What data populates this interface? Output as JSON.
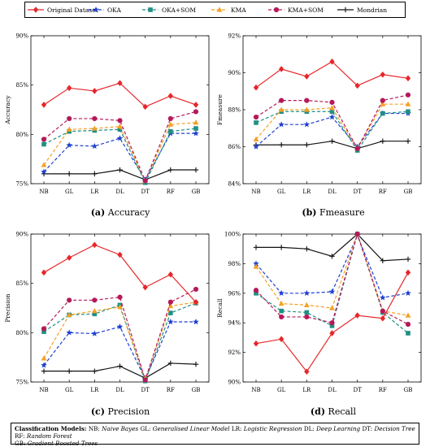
{
  "legend": [
    {
      "name": "Original Dataset",
      "color": "#e8262a",
      "dash": "",
      "marker": "diamond"
    },
    {
      "name": "OKA",
      "color": "#1e3fd1",
      "dash": "4,2.5",
      "marker": "star"
    },
    {
      "name": "OKA+SOM",
      "color": "#1f8f84",
      "dash": "4,2.5",
      "marker": "square"
    },
    {
      "name": "KMA",
      "color": "#f5a023",
      "dash": "4,2.5",
      "marker": "triangle"
    },
    {
      "name": "KMA+SOM",
      "color": "#b5195a",
      "dash": "4,2.5",
      "marker": "circle"
    },
    {
      "name": "Mondrian",
      "color": "#111111",
      "dash": "",
      "marker": "plus"
    }
  ],
  "chart_data": [
    {
      "type": "line",
      "caption_letter": "(a)",
      "caption_text": "Accuracy",
      "ylabel": "Accuracy",
      "categories": [
        "NB",
        "GL",
        "LR",
        "DL",
        "DT",
        "RF",
        "GB"
      ],
      "ylim": [
        75,
        90
      ],
      "yticks": [
        75,
        80,
        85,
        90
      ],
      "ytick_labels": [
        "75%",
        "80%",
        "85%",
        "90%"
      ],
      "series": [
        {
          "name": "Original Dataset",
          "values": [
            83.0,
            84.7,
            84.4,
            85.2,
            82.8,
            83.9,
            83.0
          ]
        },
        {
          "name": "OKA",
          "values": [
            76.2,
            78.9,
            78.8,
            79.6,
            75.4,
            80.1,
            80.1
          ]
        },
        {
          "name": "OKA+SOM",
          "values": [
            79.0,
            80.3,
            80.4,
            80.5,
            75.1,
            80.3,
            80.6
          ]
        },
        {
          "name": "KMA",
          "values": [
            76.9,
            80.5,
            80.6,
            80.8,
            75.3,
            81.0,
            81.2
          ]
        },
        {
          "name": "KMA+SOM",
          "values": [
            79.5,
            81.6,
            81.6,
            81.4,
            75.3,
            81.6,
            82.3
          ]
        },
        {
          "name": "Mondrian",
          "values": [
            76.0,
            76.0,
            76.0,
            76.4,
            75.4,
            76.4,
            76.4
          ]
        }
      ]
    },
    {
      "type": "line",
      "caption_letter": "(b)",
      "caption_text": "Fmeasure",
      "ylabel": "Fmeasure",
      "categories": [
        "NB",
        "GL",
        "LR",
        "DL",
        "DT",
        "RF",
        "GB"
      ],
      "ylim": [
        84,
        92
      ],
      "yticks": [
        84,
        86,
        88,
        90,
        92
      ],
      "ytick_labels": [
        "84%",
        "86%",
        "88%",
        "90%",
        "92%"
      ],
      "series": [
        {
          "name": "Original Dataset",
          "values": [
            89.2,
            90.2,
            89.8,
            90.6,
            89.3,
            89.9,
            89.7
          ]
        },
        {
          "name": "OKA",
          "values": [
            86.0,
            87.2,
            87.2,
            87.6,
            86.0,
            87.8,
            87.8
          ]
        },
        {
          "name": "OKA+SOM",
          "values": [
            87.3,
            87.9,
            87.9,
            87.9,
            85.8,
            87.8,
            87.9
          ]
        },
        {
          "name": "KMA",
          "values": [
            86.4,
            88.0,
            88.0,
            88.1,
            85.9,
            88.3,
            88.3
          ]
        },
        {
          "name": "KMA+SOM",
          "values": [
            87.6,
            88.5,
            88.5,
            88.4,
            85.9,
            88.5,
            88.8
          ]
        },
        {
          "name": "Mondrian",
          "values": [
            86.1,
            86.1,
            86.1,
            86.3,
            85.9,
            86.3,
            86.3
          ]
        }
      ]
    },
    {
      "type": "line",
      "caption_letter": "(c)",
      "caption_text": "Precision",
      "ylabel": "Precision",
      "categories": [
        "NB",
        "GL",
        "LR",
        "DL",
        "DT",
        "RF",
        "GB"
      ],
      "ylim": [
        75,
        90
      ],
      "yticks": [
        75,
        80,
        85,
        90
      ],
      "ytick_labels": [
        "75%",
        "80%",
        "85%",
        "90%"
      ],
      "series": [
        {
          "name": "Original Dataset",
          "values": [
            86.1,
            87.6,
            88.9,
            87.9,
            84.6,
            85.9,
            83.1
          ]
        },
        {
          "name": "OKA",
          "values": [
            76.7,
            80.0,
            79.9,
            80.6,
            75.3,
            81.1,
            81.1
          ]
        },
        {
          "name": "OKA+SOM",
          "values": [
            80.1,
            81.8,
            81.9,
            82.8,
            75.1,
            82.0,
            83.0
          ]
        },
        {
          "name": "KMA",
          "values": [
            77.4,
            81.8,
            82.2,
            82.6,
            75.3,
            82.7,
            83.1
          ]
        },
        {
          "name": "KMA+SOM",
          "values": [
            80.4,
            83.3,
            83.3,
            83.6,
            75.2,
            83.1,
            84.4
          ]
        },
        {
          "name": "Mondrian",
          "values": [
            76.1,
            76.1,
            76.1,
            76.6,
            75.4,
            76.9,
            76.8
          ]
        }
      ]
    },
    {
      "type": "line",
      "caption_letter": "(d)",
      "caption_text": "Recall",
      "ylabel": "Recall",
      "categories": [
        "NB",
        "GL",
        "LR",
        "DL",
        "DT",
        "RF",
        "GB"
      ],
      "ylim": [
        90,
        100
      ],
      "yticks": [
        90,
        92,
        94,
        96,
        98,
        100
      ],
      "ytick_labels": [
        "90%",
        "92%",
        "94%",
        "96%",
        "98%",
        "100%"
      ],
      "series": [
        {
          "name": "Original Dataset",
          "values": [
            92.6,
            92.9,
            90.7,
            93.3,
            94.5,
            94.3,
            97.4
          ]
        },
        {
          "name": "OKA",
          "values": [
            98.0,
            96.0,
            96.0,
            96.1,
            99.9,
            95.7,
            96.0
          ]
        },
        {
          "name": "OKA+SOM",
          "values": [
            96.0,
            94.8,
            94.7,
            93.8,
            100.0,
            94.7,
            93.3
          ]
        },
        {
          "name": "KMA",
          "values": [
            97.8,
            95.3,
            95.2,
            95.0,
            100.0,
            94.8,
            94.5
          ]
        },
        {
          "name": "KMA+SOM",
          "values": [
            96.2,
            94.4,
            94.4,
            94.0,
            100.0,
            94.8,
            93.9
          ]
        },
        {
          "name": "Mondrian",
          "values": [
            99.1,
            99.1,
            99.0,
            98.5,
            100.0,
            98.2,
            98.3
          ]
        }
      ]
    }
  ],
  "models": {
    "heading": "Classification Models:",
    "items": [
      {
        "abbr": "NB:",
        "full": "Naive Bayes"
      },
      {
        "abbr": "GL:",
        "full": "Generalised Linear Model"
      },
      {
        "abbr": "LR:",
        "full": "Logistic Regression"
      },
      {
        "abbr": "DL:",
        "full": "Deep Learning"
      },
      {
        "abbr": "DT:",
        "full": "Decision Tree"
      },
      {
        "abbr": "RF:",
        "full": "Random Forest"
      },
      {
        "abbr": "GB:",
        "full": "Gradient Boosted Trees"
      }
    ]
  }
}
